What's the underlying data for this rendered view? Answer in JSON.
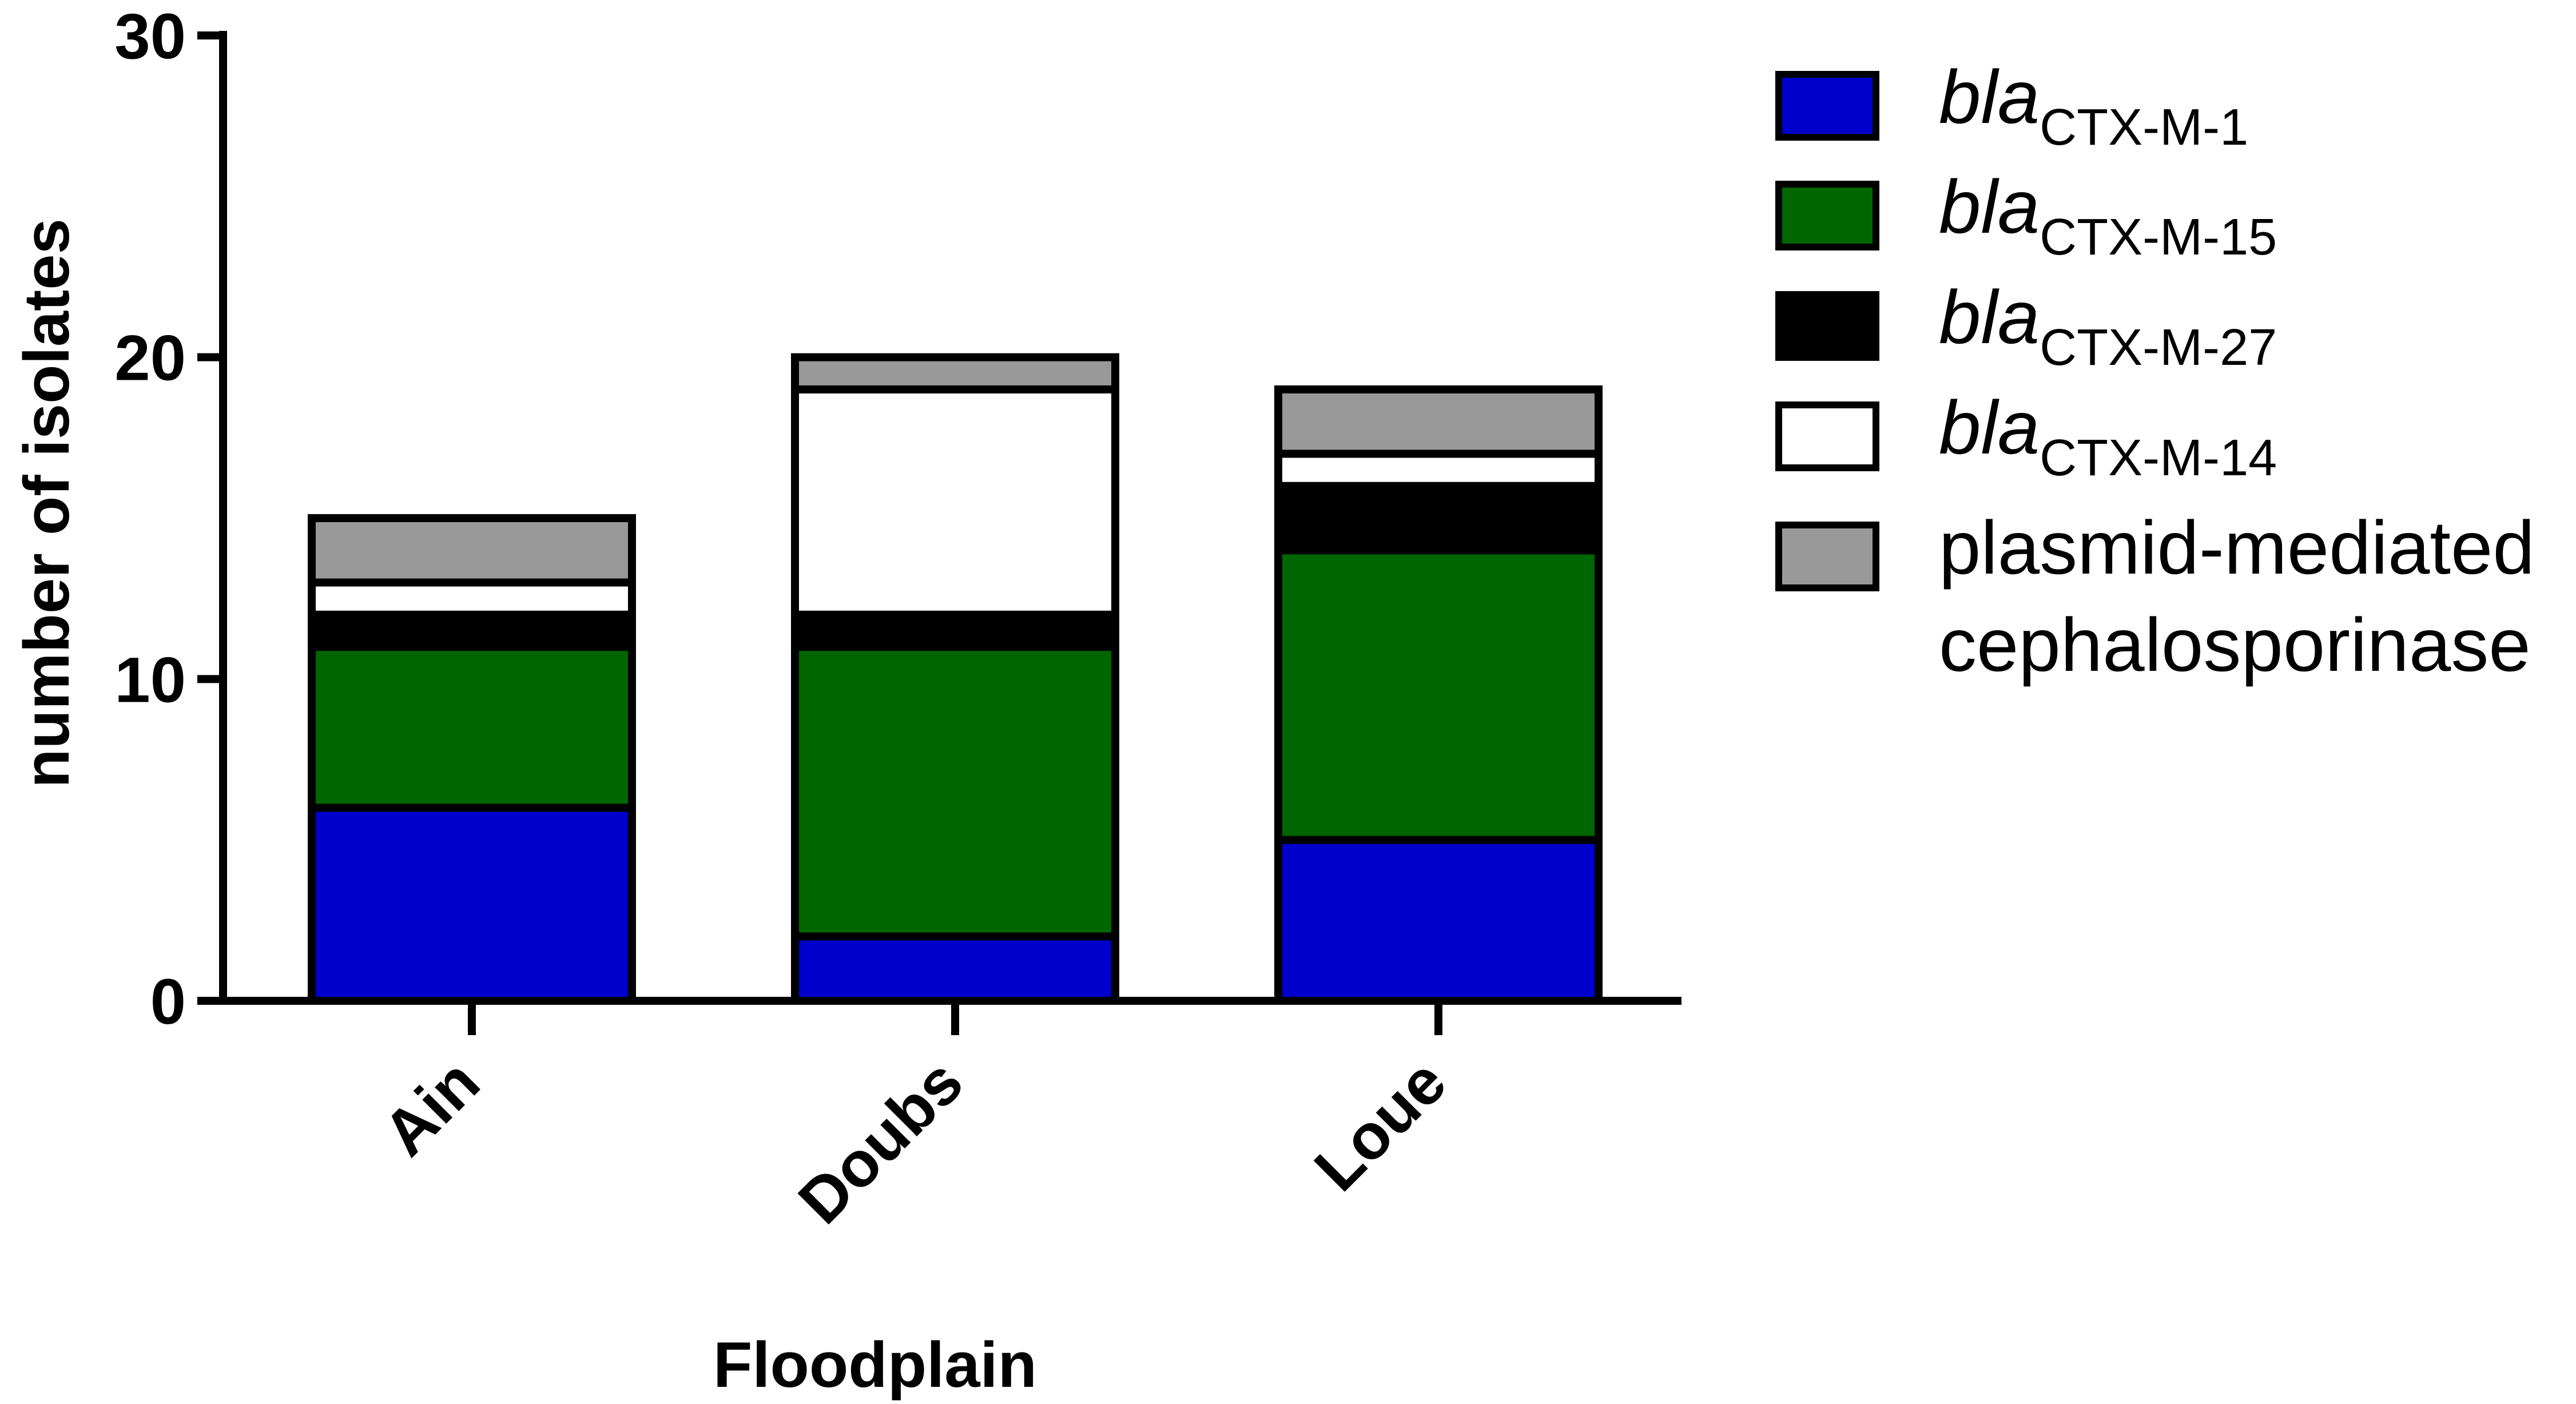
{
  "chart_data": {
    "type": "bar",
    "stacked": true,
    "title": "",
    "xlabel": "Floodplain",
    "ylabel": "number of isolates",
    "ylim": [
      0,
      30
    ],
    "yticks": [
      0,
      10,
      20,
      30
    ],
    "categories": [
      "Ain",
      "Doubs",
      "Loue"
    ],
    "grid": false,
    "legend_position": "right",
    "series": [
      {
        "name": "blaCTX-M-1",
        "italic_part": "bla",
        "subscript_part": "CTX-M-1",
        "color": "#0000CC",
        "values": [
          6,
          2,
          5
        ]
      },
      {
        "name": "blaCTX-M-15",
        "italic_part": "bla",
        "subscript_part": "CTX-M-15",
        "color": "#006600",
        "values": [
          5,
          9,
          9
        ]
      },
      {
        "name": "blaCTX-M-27",
        "italic_part": "bla",
        "subscript_part": "CTX-M-27",
        "color": "#000000",
        "values": [
          1,
          1,
          2
        ]
      },
      {
        "name": "blaCTX-M-14",
        "italic_part": "bla",
        "subscript_part": "CTX-M-14",
        "color": "#FFFFFF",
        "values": [
          1,
          7,
          1
        ]
      },
      {
        "name": "plasmid-mediated cephalosporinase",
        "label_lines": [
          "plasmid-mediated",
          "cephalosporinase"
        ],
        "color": "#999999",
        "values": [
          2,
          1,
          2
        ]
      }
    ]
  }
}
